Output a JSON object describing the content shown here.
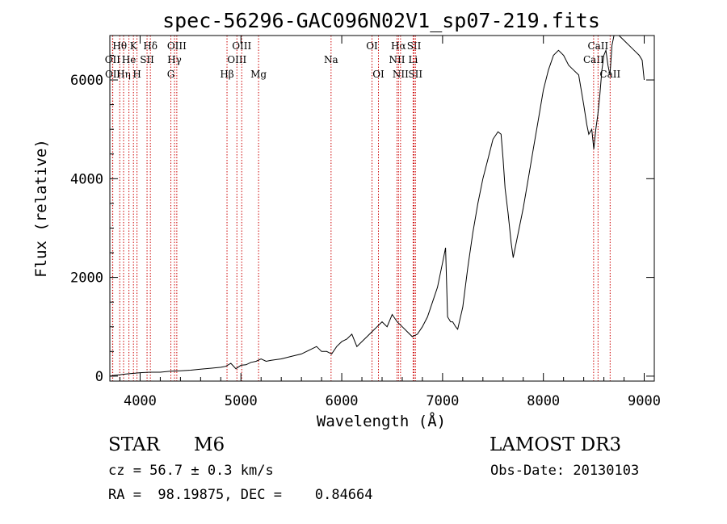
{
  "chart_data": {
    "type": "line",
    "title": "spec-56296-GAC096N02V1_sp07-219.fits",
    "xlabel": "Wavelength (Å)",
    "ylabel": "Flux (relative)",
    "xlim": [
      3700,
      9100
    ],
    "ylim": [
      -100,
      6900
    ],
    "xticks": [
      4000,
      5000,
      6000,
      7000,
      8000,
      9000
    ],
    "yticks": [
      0,
      2000,
      4000,
      6000
    ],
    "line_color": "#000000",
    "marker_color": "#cc0000",
    "series": [
      {
        "name": "spectrum",
        "x": [
          3700,
          3750,
          3800,
          3850,
          3900,
          3950,
          4000,
          4100,
          4200,
          4300,
          4400,
          4500,
          4600,
          4700,
          4800,
          4850,
          4900,
          4950,
          5000,
          5050,
          5100,
          5150,
          5200,
          5250,
          5300,
          5400,
          5500,
          5600,
          5700,
          5750,
          5800,
          5850,
          5900,
          5950,
          6000,
          6050,
          6100,
          6150,
          6200,
          6250,
          6300,
          6350,
          6400,
          6450,
          6500,
          6550,
          6600,
          6650,
          6700,
          6750,
          6800,
          6850,
          6900,
          6950,
          7000,
          7030,
          7050,
          7080,
          7100,
          7130,
          7150,
          7200,
          7250,
          7300,
          7350,
          7400,
          7450,
          7500,
          7550,
          7580,
          7600,
          7620,
          7650,
          7680,
          7700,
          7750,
          7800,
          7850,
          7900,
          7950,
          8000,
          8050,
          8100,
          8150,
          8200,
          8250,
          8300,
          8350,
          8400,
          8430,
          8450,
          8480,
          8500,
          8520,
          8540,
          8560,
          8580,
          8600,
          8620,
          8640,
          8660,
          8680,
          8700,
          8750,
          8800,
          8850,
          8900,
          8950,
          8980,
          9000
        ],
        "y": [
          0,
          20,
          30,
          40,
          50,
          60,
          70,
          80,
          80,
          100,
          110,
          120,
          140,
          160,
          180,
          200,
          260,
          150,
          220,
          230,
          280,
          300,
          350,
          300,
          320,
          350,
          400,
          450,
          550,
          600,
          500,
          500,
          450,
          600,
          700,
          750,
          850,
          600,
          700,
          800,
          900,
          1000,
          1100,
          1000,
          1250,
          1100,
          1000,
          900,
          800,
          850,
          1000,
          1200,
          1500,
          1800,
          2300,
          2600,
          1200,
          1100,
          1100,
          1000,
          950,
          1400,
          2200,
          2900,
          3500,
          4000,
          4400,
          4800,
          4950,
          4900,
          4400,
          3800,
          3300,
          2700,
          2400,
          2900,
          3400,
          4000,
          4600,
          5200,
          5800,
          6200,
          6500,
          6600,
          6500,
          6300,
          6200,
          6100,
          5500,
          5100,
          4900,
          5000,
          4600,
          5000,
          5300,
          5700,
          6200,
          6500,
          6600,
          6300,
          6100,
          6700,
          7000,
          6900,
          6800,
          6700,
          6600,
          6500,
          6400,
          6000
        ]
      }
    ],
    "line_markers": [
      {
        "label": "Hθ",
        "x": 3798,
        "row": 1
      },
      {
        "label": "OII",
        "x": 3727,
        "row": 2
      },
      {
        "label": "OII",
        "x": 3729,
        "row": 3
      },
      {
        "label": "Hη",
        "x": 3836,
        "row": 3
      },
      {
        "label": "He",
        "x": 3889,
        "row": 2
      },
      {
        "label": "K",
        "x": 3934,
        "row": 1
      },
      {
        "label": "H",
        "x": 3969,
        "row": 3
      },
      {
        "label": "SII",
        "x": 4069,
        "row": 2
      },
      {
        "label": "Hδ",
        "x": 4102,
        "row": 1
      },
      {
        "label": "Hγ",
        "x": 4341,
        "row": 2
      },
      {
        "label": "G",
        "x": 4305,
        "row": 3
      },
      {
        "label": "OIII",
        "x": 4364,
        "row": 1
      },
      {
        "label": "Hβ",
        "x": 4862,
        "row": 3
      },
      {
        "label": "OIII",
        "x": 4960,
        "row": 2
      },
      {
        "label": "OIII",
        "x": 5008,
        "row": 1
      },
      {
        "label": "Mg",
        "x": 5175,
        "row": 3
      },
      {
        "label": "Na",
        "x": 5894,
        "row": 2
      },
      {
        "label": "OI",
        "x": 6300,
        "row": 1
      },
      {
        "label": "OI",
        "x": 6364,
        "row": 3
      },
      {
        "label": "NII",
        "x": 6548,
        "row": 2
      },
      {
        "label": "Hα",
        "x": 6563,
        "row": 1
      },
      {
        "label": "NII",
        "x": 6583,
        "row": 3
      },
      {
        "label": "Li",
        "x": 6708,
        "row": 2
      },
      {
        "label": "SII",
        "x": 6717,
        "row": 1
      },
      {
        "label": "SII",
        "x": 6731,
        "row": 3
      },
      {
        "label": "CaII",
        "x": 8498,
        "row": 2
      },
      {
        "label": "CaII",
        "x": 8542,
        "row": 1
      },
      {
        "label": "CaII",
        "x": 8662,
        "row": 3
      }
    ]
  },
  "info": {
    "class_label": "STAR",
    "subclass": "M6",
    "survey": "LAMOST DR3",
    "cz": "cz = 56.7 ± 0.3 km/s",
    "obs_date": "Obs-Date: 20130103",
    "coords": "RA =  98.19875, DEC =    0.84664"
  }
}
